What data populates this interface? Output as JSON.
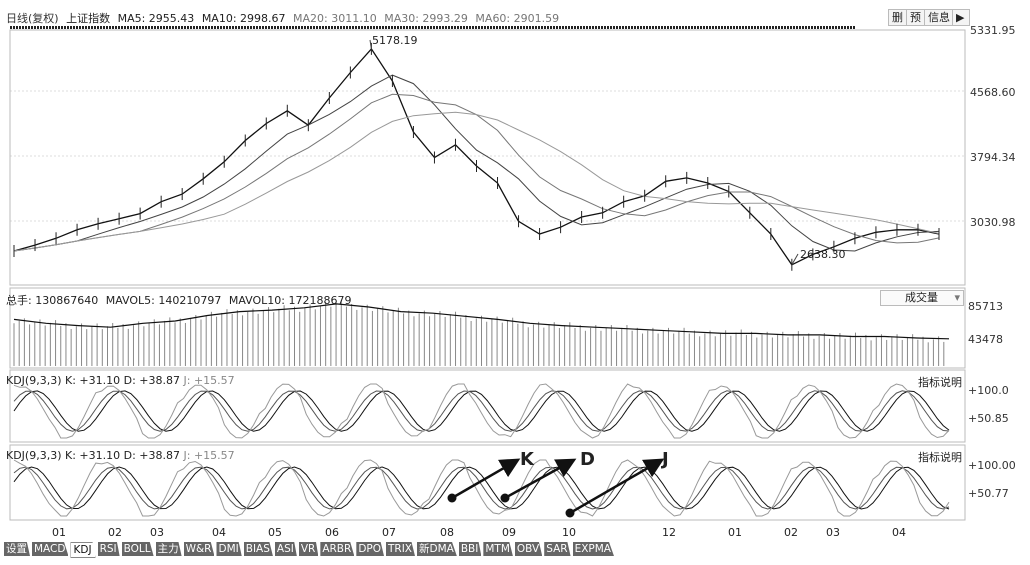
{
  "header": {
    "period_label": "日线(复权)",
    "index_name": "上证指数",
    "ma5": "MA5: 2955.43",
    "ma10": "MA10: 2998.67",
    "ma20": "MA20: 3011.10",
    "ma30": "MA30: 2993.29",
    "ma60": "MA60: 2901.59",
    "btn_delete": "删",
    "btn_predict": "预",
    "btn_info": "信息"
  },
  "price_panel": {
    "yticks": [
      "5331.95",
      "4568.60",
      "3794.34",
      "3030.98"
    ],
    "high_label": "5178.19",
    "low_label": "2638.30"
  },
  "volume_panel": {
    "header_total": "总手: 130867640",
    "header_mavol5": "MAVOL5: 140210797",
    "header_mavol10": "MAVOL10: 172188679",
    "dropdown_value": "成交量",
    "yticks": [
      "85713",
      "43478"
    ]
  },
  "kdj_panel_1": {
    "header_name": "KDJ(9,3,3)",
    "header_k": "K: +31.10",
    "header_d": "D: +38.87",
    "header_j": "J: +15.57",
    "explain": "指标说明",
    "yticks": [
      "100.0",
      "50.85"
    ]
  },
  "kdj_panel_2": {
    "header_name": "KDJ(9,3,3)",
    "header_k": "K: +31.10",
    "header_d": "D: +38.87",
    "header_j": "J: +15.57",
    "explain": "指标说明",
    "yticks": [
      "100.00",
      "50.77"
    ],
    "markers": [
      "K",
      "D",
      "J"
    ]
  },
  "xaxis": {
    "labels": [
      "01",
      "02",
      "03",
      "04",
      "05",
      "06",
      "07",
      "08",
      "09",
      "10",
      "12",
      "01",
      "02",
      "03",
      "04"
    ]
  },
  "tabs": [
    "设置",
    "MACD",
    "KDJ",
    "RSI",
    "BOLL",
    "主力",
    "W&R",
    "DMI",
    "BIAS",
    "ASI",
    "VR",
    "ARBR",
    "DPO",
    "TRIX",
    "新DMA",
    "BBI",
    "MTM",
    "OBV",
    "SAR",
    "EXPMA"
  ],
  "active_tab": "KDJ",
  "chart_data": {
    "type": "line",
    "price_series": [
      2800,
      2870,
      2950,
      3050,
      3120,
      3180,
      3240,
      3380,
      3470,
      3650,
      3850,
      4100,
      4300,
      4450,
      4280,
      4600,
      4900,
      5178,
      4800,
      4200,
      3900,
      4050,
      3800,
      3600,
      3150,
      3000,
      3080,
      3200,
      3250,
      3380,
      3450,
      3620,
      3660,
      3600,
      3500,
      3250,
      3000,
      2638,
      2760,
      2850,
      2950,
      3020,
      3050,
      3050,
      3000
    ],
    "volume_series": [
      60,
      55,
      52,
      50,
      55,
      58,
      65,
      70,
      72,
      75,
      80,
      76,
      70,
      68,
      64,
      60,
      55,
      52,
      50,
      48,
      46,
      44,
      42,
      42,
      40,
      40,
      38,
      38,
      36,
      35
    ],
    "ylim_price": [
      2400,
      5400
    ]
  }
}
